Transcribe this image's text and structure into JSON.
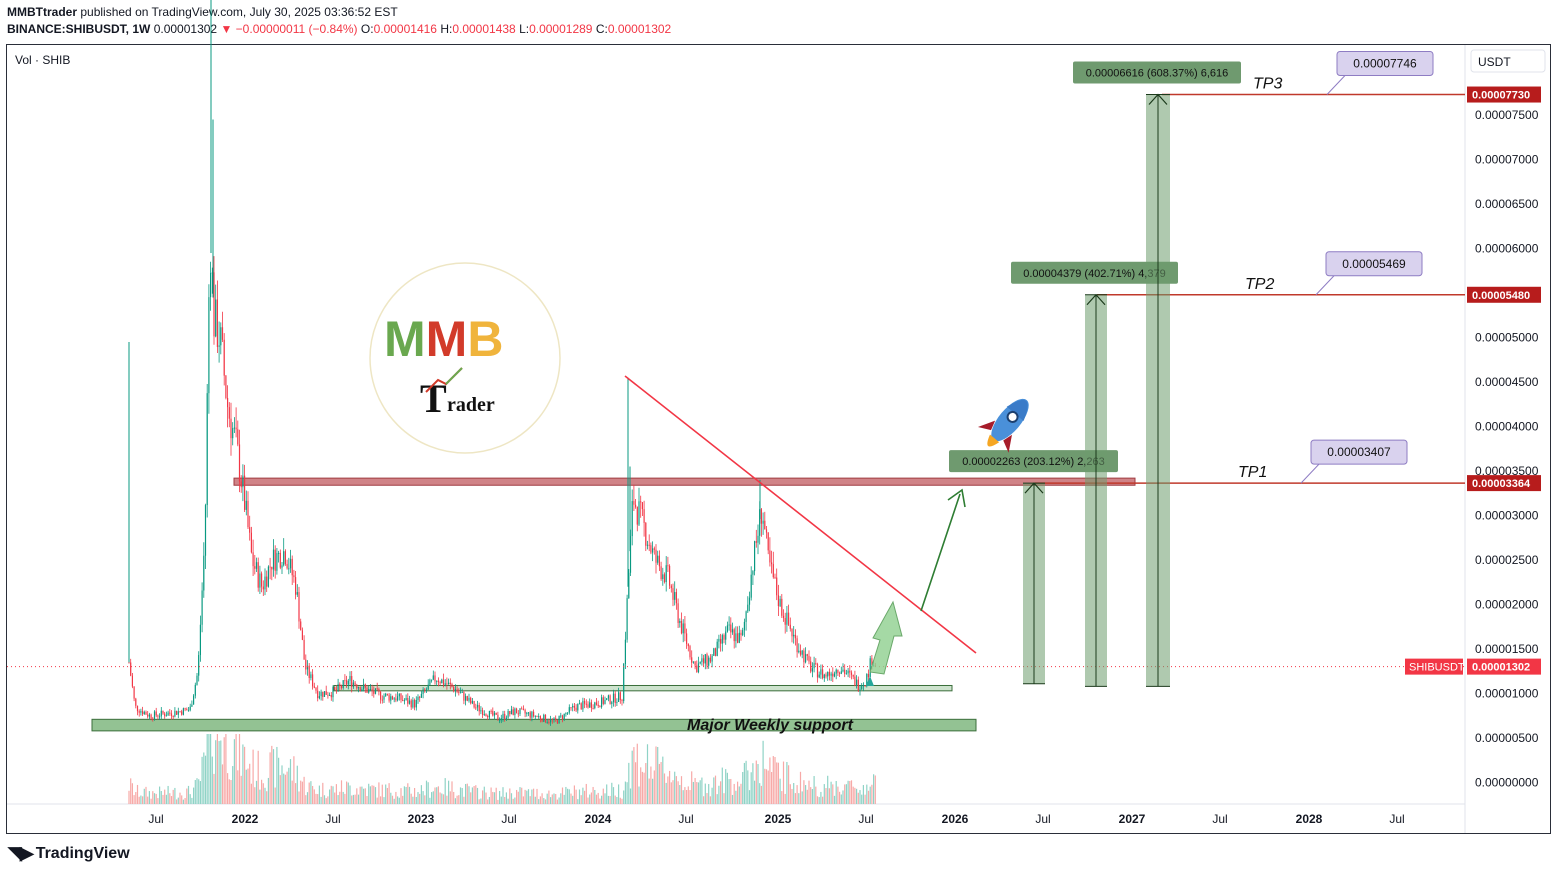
{
  "header": {
    "author": "MMBTtrader",
    "published_text": "published on TradingView.com, July 30, 2025 03:36:52 EST",
    "symbol_line": "BINANCE:SHIBUSDT, 1W",
    "price": "0.00001302",
    "change": "−0.00000011 (−0.84%)",
    "open_label": "O:",
    "open": "0.00001416",
    "high_label": "H:",
    "high": "0.00001438",
    "low_label": "L:",
    "low": "0.00001289",
    "close_label": "C:",
    "close": "0.00001302"
  },
  "chart": {
    "vol_label": "Vol · SHIB",
    "currency": "USDT",
    "symbol_tag": "SHIBUSDT",
    "current_price": "0.00001302",
    "colors": {
      "up": "#089981",
      "down": "#f23645",
      "zone_green": "#6fae6f",
      "zone_red": "#c05a5f",
      "tp_line": "#c0392b",
      "trend": "#f23645",
      "measure": "#6e9c6e",
      "callout_bg": "#d9d2ee",
      "callout_border": "#8e7cc3"
    }
  },
  "chart_data": {
    "type": "candlestick",
    "title": "",
    "x_tick_labels": [
      "Jul",
      "2022",
      "Jul",
      "2023",
      "Jul",
      "2024",
      "Jul",
      "2025",
      "Jul",
      "2026",
      "Jul",
      "2027",
      "Jul",
      "2028",
      "Jul"
    ],
    "y_tick_labels": [
      "0.00007500",
      "0.00007000",
      "0.00006500",
      "0.00006000",
      "0.00005500",
      "0.00005000",
      "0.00004500",
      "0.00004000",
      "0.00003500",
      "0.00003000",
      "0.00002500",
      "0.00002000",
      "0.00001500",
      "0.00001000",
      "0.00000500",
      "0.00000000"
    ],
    "y_ticks": [
      7.5e-05,
      7e-05,
      6.5e-05,
      6e-05,
      5.5e-05,
      5e-05,
      4.5e-05,
      4e-05,
      3.5e-05,
      3e-05,
      2.5e-05,
      2e-05,
      1.5e-05,
      1e-05,
      5e-06,
      0.0
    ],
    "ylim": [
      -2.4e-06,
      7.94e-05
    ],
    "levels": [
      {
        "name": "TP3",
        "price": 7.73e-05,
        "label": "0.00007730",
        "callout": "0.00007746"
      },
      {
        "name": "TP2",
        "price": 5.48e-05,
        "label": "0.00005480",
        "callout": "0.00005469"
      },
      {
        "name": "TP1",
        "price": 3.364e-05,
        "label": "0.00003364",
        "callout": "0.00003407"
      }
    ],
    "measures": [
      {
        "text": "0.00002263 (203.12%) 2,263",
        "from": 1.11e-05,
        "to": 3.364e-05
      },
      {
        "text": "0.00004379 (402.71%) 4,379",
        "from": 1.08e-05,
        "to": 5.48e-05
      },
      {
        "text": "0.00006616 (608.37%) 6,616",
        "from": 1.08e-05,
        "to": 7.73e-05
      }
    ],
    "zones": [
      {
        "label": "Major Weekly support",
        "low": 5.8e-06,
        "high": 7.1e-06
      },
      {
        "label": "",
        "low": 1.03e-05,
        "high": 1.09e-05
      },
      {
        "label": "",
        "low": 3.34e-05,
        "high": 3.42e-05
      }
    ],
    "annotations": [
      "TP1",
      "TP2",
      "TP3",
      "Major Weekly support"
    ],
    "logo_text": [
      "MMB",
      "Trader"
    ]
  }
}
